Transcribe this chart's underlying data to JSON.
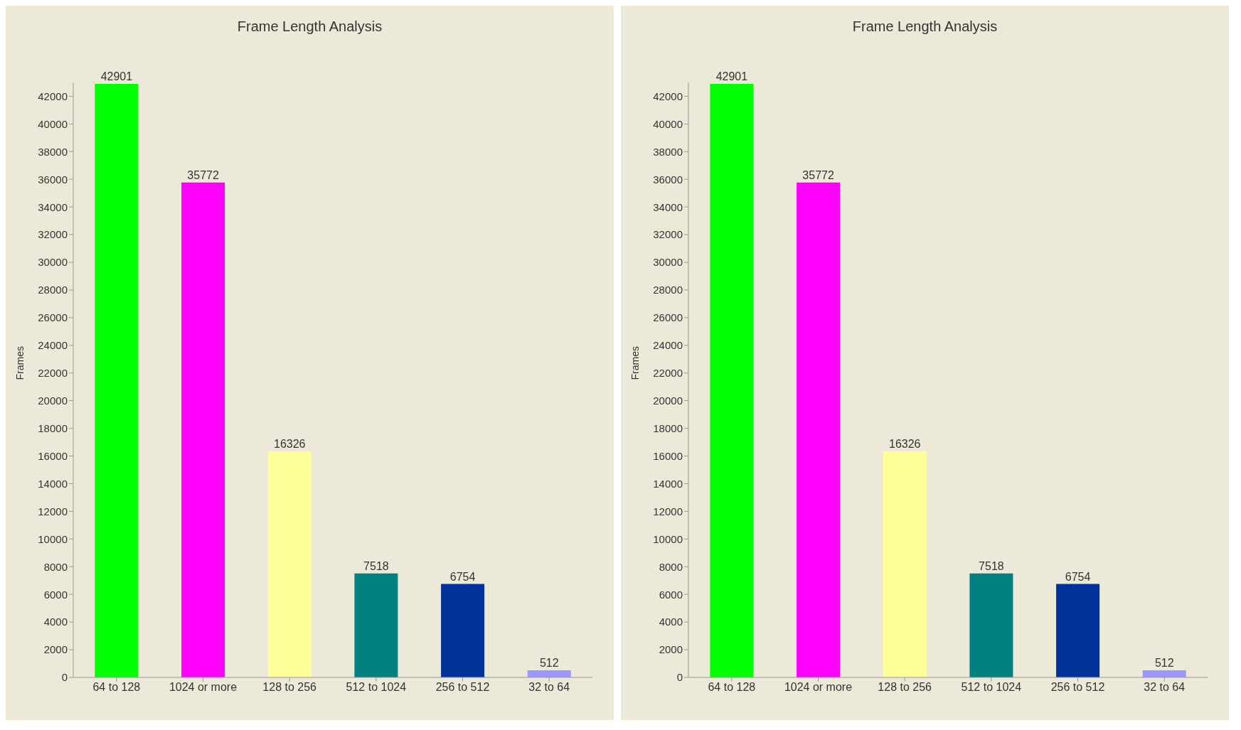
{
  "chart_data": [
    {
      "type": "bar",
      "title": "Frame Length Analysis",
      "ylabel": "Frames",
      "categories": [
        "64 to 128",
        "1024 or more",
        "128 to 256",
        "512 to 1024",
        "256 to 512",
        "32 to 64"
      ],
      "values": [
        42901,
        35772,
        16326,
        7518,
        6754,
        512
      ],
      "colors": [
        "#00ff00",
        "#ff00ff",
        "#ffff99",
        "#008080",
        "#003399",
        "#9999ff"
      ],
      "ylim": [
        0,
        43000
      ],
      "yticks": [
        0,
        2000,
        4000,
        6000,
        8000,
        10000,
        12000,
        14000,
        16000,
        18000,
        20000,
        22000,
        24000,
        26000,
        28000,
        30000,
        32000,
        34000,
        36000,
        38000,
        40000,
        42000
      ],
      "data_labels": true,
      "grid": false,
      "legend": false
    },
    {
      "type": "bar",
      "title": "Frame Length Analysis",
      "ylabel": "Frames",
      "categories": [
        "64 to 128",
        "1024 or more",
        "128 to 256",
        "512 to 1024",
        "256 to 512",
        "32 to 64"
      ],
      "values": [
        42901,
        35772,
        16326,
        7518,
        6754,
        512
      ],
      "colors": [
        "#00ff00",
        "#ff00ff",
        "#ffff99",
        "#008080",
        "#003399",
        "#9999ff"
      ],
      "ylim": [
        0,
        43000
      ],
      "yticks": [
        0,
        2000,
        4000,
        6000,
        8000,
        10000,
        12000,
        14000,
        16000,
        18000,
        20000,
        22000,
        24000,
        26000,
        28000,
        30000,
        32000,
        34000,
        36000,
        38000,
        40000,
        42000
      ],
      "data_labels": true,
      "grid": false,
      "legend": false
    }
  ]
}
